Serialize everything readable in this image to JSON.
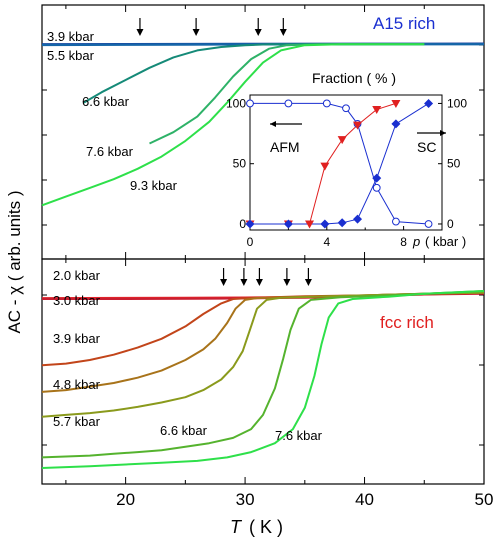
{
  "chart_data": [
    {
      "panel": "top",
      "type": "line",
      "sample_label": "A15 rich",
      "sample_color": "#1a2fd0",
      "x_range": [
        13,
        50
      ],
      "arrows_x": [
        21.2,
        25.9,
        31.1,
        33.2
      ],
      "series": [
        {
          "name": "3.9 kbar",
          "color": "#1a3f9e",
          "points": [
            [
              13,
              0.975
            ],
            [
              20,
              0.976
            ],
            [
              30,
              0.977
            ],
            [
              40,
              0.978
            ],
            [
              45,
              0.978
            ],
            [
              50,
              0.979
            ]
          ]
        },
        {
          "name": "5.5 kbar",
          "color": "#1565a8",
          "points": [
            [
              13,
              0.972
            ],
            [
              20,
              0.973
            ],
            [
              25,
              0.974
            ],
            [
              30,
              0.975
            ],
            [
              40,
              0.976
            ],
            [
              50,
              0.976
            ]
          ]
        },
        {
          "name": "6.6 kbar",
          "color": "#158a78",
          "points": [
            [
              16.5,
              0.64
            ],
            [
              18,
              0.7
            ],
            [
              20,
              0.77
            ],
            [
              22,
              0.84
            ],
            [
              24,
              0.9
            ],
            [
              26,
              0.94
            ],
            [
              28,
              0.96
            ],
            [
              30,
              0.97
            ],
            [
              32,
              0.975
            ],
            [
              40,
              0.976
            ],
            [
              45,
              0.976
            ]
          ]
        },
        {
          "name": "7.6 kbar",
          "color": "#2eb268",
          "points": [
            [
              22,
              0.405
            ],
            [
              24,
              0.47
            ],
            [
              26,
              0.56
            ],
            [
              27.5,
              0.67
            ],
            [
              29,
              0.79
            ],
            [
              30.5,
              0.89
            ],
            [
              32,
              0.95
            ],
            [
              33.5,
              0.97
            ],
            [
              36,
              0.975
            ],
            [
              45,
              0.976
            ]
          ]
        },
        {
          "name": "9.3 kbar",
          "color": "#2ee04a",
          "points": [
            [
              13,
              0.05
            ],
            [
              15,
              0.1
            ],
            [
              17,
              0.15
            ],
            [
              19,
              0.2
            ],
            [
              21,
              0.26
            ],
            [
              23,
              0.33
            ],
            [
              25,
              0.42
            ],
            [
              27,
              0.53
            ],
            [
              28.5,
              0.64
            ],
            [
              30,
              0.76
            ],
            [
              31.5,
              0.87
            ],
            [
              33,
              0.94
            ],
            [
              35,
              0.97
            ],
            [
              38,
              0.975
            ],
            [
              45,
              0.976
            ]
          ]
        }
      ],
      "inset": {
        "title": "Fraction ( % )",
        "xlabel_var": "p",
        "xlabel_unit": "( kbar )",
        "x_range": [
          0,
          10
        ],
        "y_range": [
          -5,
          107
        ],
        "x_ticks": [
          0,
          4,
          8
        ],
        "y_ticks": [
          0,
          50,
          100
        ],
        "annotations": [
          "AFM",
          "SC"
        ],
        "afm_points": [
          [
            0,
            100
          ],
          [
            2,
            100
          ],
          [
            4,
            100
          ],
          [
            5,
            96
          ],
          [
            5.6,
            83
          ],
          [
            6.6,
            30
          ],
          [
            7.6,
            2
          ],
          [
            9.3,
            0
          ]
        ],
        "afm_color": "#1a2fd0",
        "triangles": [
          [
            0,
            0
          ],
          [
            2,
            0
          ],
          [
            3.1,
            0
          ],
          [
            3.9,
            48
          ],
          [
            4.8,
            70
          ],
          [
            5.6,
            82
          ],
          [
            6.6,
            95
          ],
          [
            7.6,
            100
          ]
        ],
        "triangle_color": "#e02020",
        "diamonds": [
          [
            0,
            0
          ],
          [
            2,
            0
          ],
          [
            3.9,
            0
          ],
          [
            4.8,
            1
          ],
          [
            5.6,
            4
          ],
          [
            6.6,
            38
          ],
          [
            7.6,
            83
          ],
          [
            9.3,
            100
          ]
        ],
        "diamond_color": "#1a2fd0"
      }
    },
    {
      "panel": "bottom",
      "type": "line",
      "sample_label": "fcc rich",
      "sample_color": "#e02020",
      "x_range": [
        13,
        50
      ],
      "arrows_x": [
        28.2,
        29.9,
        31.2,
        33.5,
        35.3
      ],
      "series": [
        {
          "name": "2.0 kbar",
          "color": "#e0232a",
          "points": [
            [
              13,
              0.96
            ],
            [
              20,
              0.961
            ],
            [
              25,
              0.962
            ],
            [
              30,
              0.963
            ],
            [
              35,
              0.966
            ],
            [
              40,
              0.972
            ],
            [
              45,
              0.98
            ],
            [
              50,
              0.99
            ]
          ]
        },
        {
          "name": "3.0 kbar",
          "color": "#c91e30",
          "points": [
            [
              13,
              0.955
            ],
            [
              20,
              0.955
            ],
            [
              26,
              0.956
            ],
            [
              28,
              0.957
            ],
            [
              30,
              0.958
            ],
            [
              35,
              0.962
            ],
            [
              40,
              0.97
            ],
            [
              45,
              0.98
            ],
            [
              50,
              0.985
            ]
          ]
        },
        {
          "name": "3.9 kbar",
          "color": "#c2451a",
          "points": [
            [
              13,
              0.58
            ],
            [
              15,
              0.59
            ],
            [
              17,
              0.61
            ],
            [
              19,
              0.64
            ],
            [
              21,
              0.68
            ],
            [
              23,
              0.73
            ],
            [
              25,
              0.8
            ],
            [
              26.5,
              0.87
            ],
            [
              28,
              0.93
            ],
            [
              29,
              0.955
            ],
            [
              31,
              0.962
            ],
            [
              35,
              0.97
            ],
            [
              40,
              0.975
            ],
            [
              45,
              0.985
            ],
            [
              50,
              0.995
            ]
          ]
        },
        {
          "name": "4.8 kbar",
          "color": "#a8731a",
          "points": [
            [
              13,
              0.43
            ],
            [
              15,
              0.44
            ],
            [
              17,
              0.46
            ],
            [
              19,
              0.48
            ],
            [
              21,
              0.51
            ],
            [
              23,
              0.55
            ],
            [
              25,
              0.61
            ],
            [
              26.5,
              0.67
            ],
            [
              27.5,
              0.73
            ],
            [
              28.5,
              0.82
            ],
            [
              29.2,
              0.9
            ],
            [
              30,
              0.95
            ],
            [
              31,
              0.96
            ],
            [
              35,
              0.968
            ],
            [
              40,
              0.975
            ],
            [
              45,
              0.985
            ],
            [
              50,
              0.995
            ]
          ]
        },
        {
          "name": "5.7 kbar",
          "color": "#8a9a1c",
          "points": [
            [
              13,
              0.29
            ],
            [
              15,
              0.3
            ],
            [
              17,
              0.31
            ],
            [
              19,
              0.325
            ],
            [
              21,
              0.345
            ],
            [
              23,
              0.37
            ],
            [
              25,
              0.4
            ],
            [
              26.5,
              0.44
            ],
            [
              28,
              0.5
            ],
            [
              29,
              0.57
            ],
            [
              29.8,
              0.66
            ],
            [
              30.4,
              0.78
            ],
            [
              31,
              0.9
            ],
            [
              31.8,
              0.95
            ],
            [
              33,
              0.962
            ],
            [
              38,
              0.972
            ],
            [
              45,
              0.985
            ],
            [
              50,
              0.99
            ]
          ]
        },
        {
          "name": "6.6 kbar",
          "color": "#55b32e",
          "points": [
            [
              13,
              0.06
            ],
            [
              15,
              0.065
            ],
            [
              17,
              0.07
            ],
            [
              19,
              0.08
            ],
            [
              21,
              0.09
            ],
            [
              23,
              0.1
            ],
            [
              25,
              0.12
            ],
            [
              27,
              0.14
            ],
            [
              29,
              0.17
            ],
            [
              30.5,
              0.22
            ],
            [
              31.5,
              0.3
            ],
            [
              32.5,
              0.45
            ],
            [
              33.2,
              0.62
            ],
            [
              33.8,
              0.78
            ],
            [
              34.5,
              0.9
            ],
            [
              35.5,
              0.95
            ],
            [
              38,
              0.965
            ],
            [
              42,
              0.975
            ],
            [
              45,
              0.985
            ],
            [
              50,
              1.0
            ]
          ]
        },
        {
          "name": "7.6 kbar",
          "color": "#2ee04a",
          "points": [
            [
              13,
              0.0
            ],
            [
              15,
              0.005
            ],
            [
              17,
              0.01
            ],
            [
              20,
              0.02
            ],
            [
              23,
              0.03
            ],
            [
              26,
              0.04
            ],
            [
              28.5,
              0.06
            ],
            [
              30.5,
              0.09
            ],
            [
              32.5,
              0.14
            ],
            [
              34,
              0.22
            ],
            [
              35,
              0.34
            ],
            [
              35.8,
              0.52
            ],
            [
              36.4,
              0.7
            ],
            [
              37,
              0.85
            ],
            [
              37.8,
              0.93
            ],
            [
              39,
              0.955
            ],
            [
              42,
              0.968
            ],
            [
              45,
              0.985
            ],
            [
              50,
              1.0
            ]
          ]
        }
      ]
    }
  ],
  "axes": {
    "x_label_var": "T",
    "x_label_unit": "( K )",
    "y_label": "AC - χ  ( arb. units )",
    "x_tick_labels": [
      "20",
      "30",
      "40",
      "50"
    ]
  }
}
